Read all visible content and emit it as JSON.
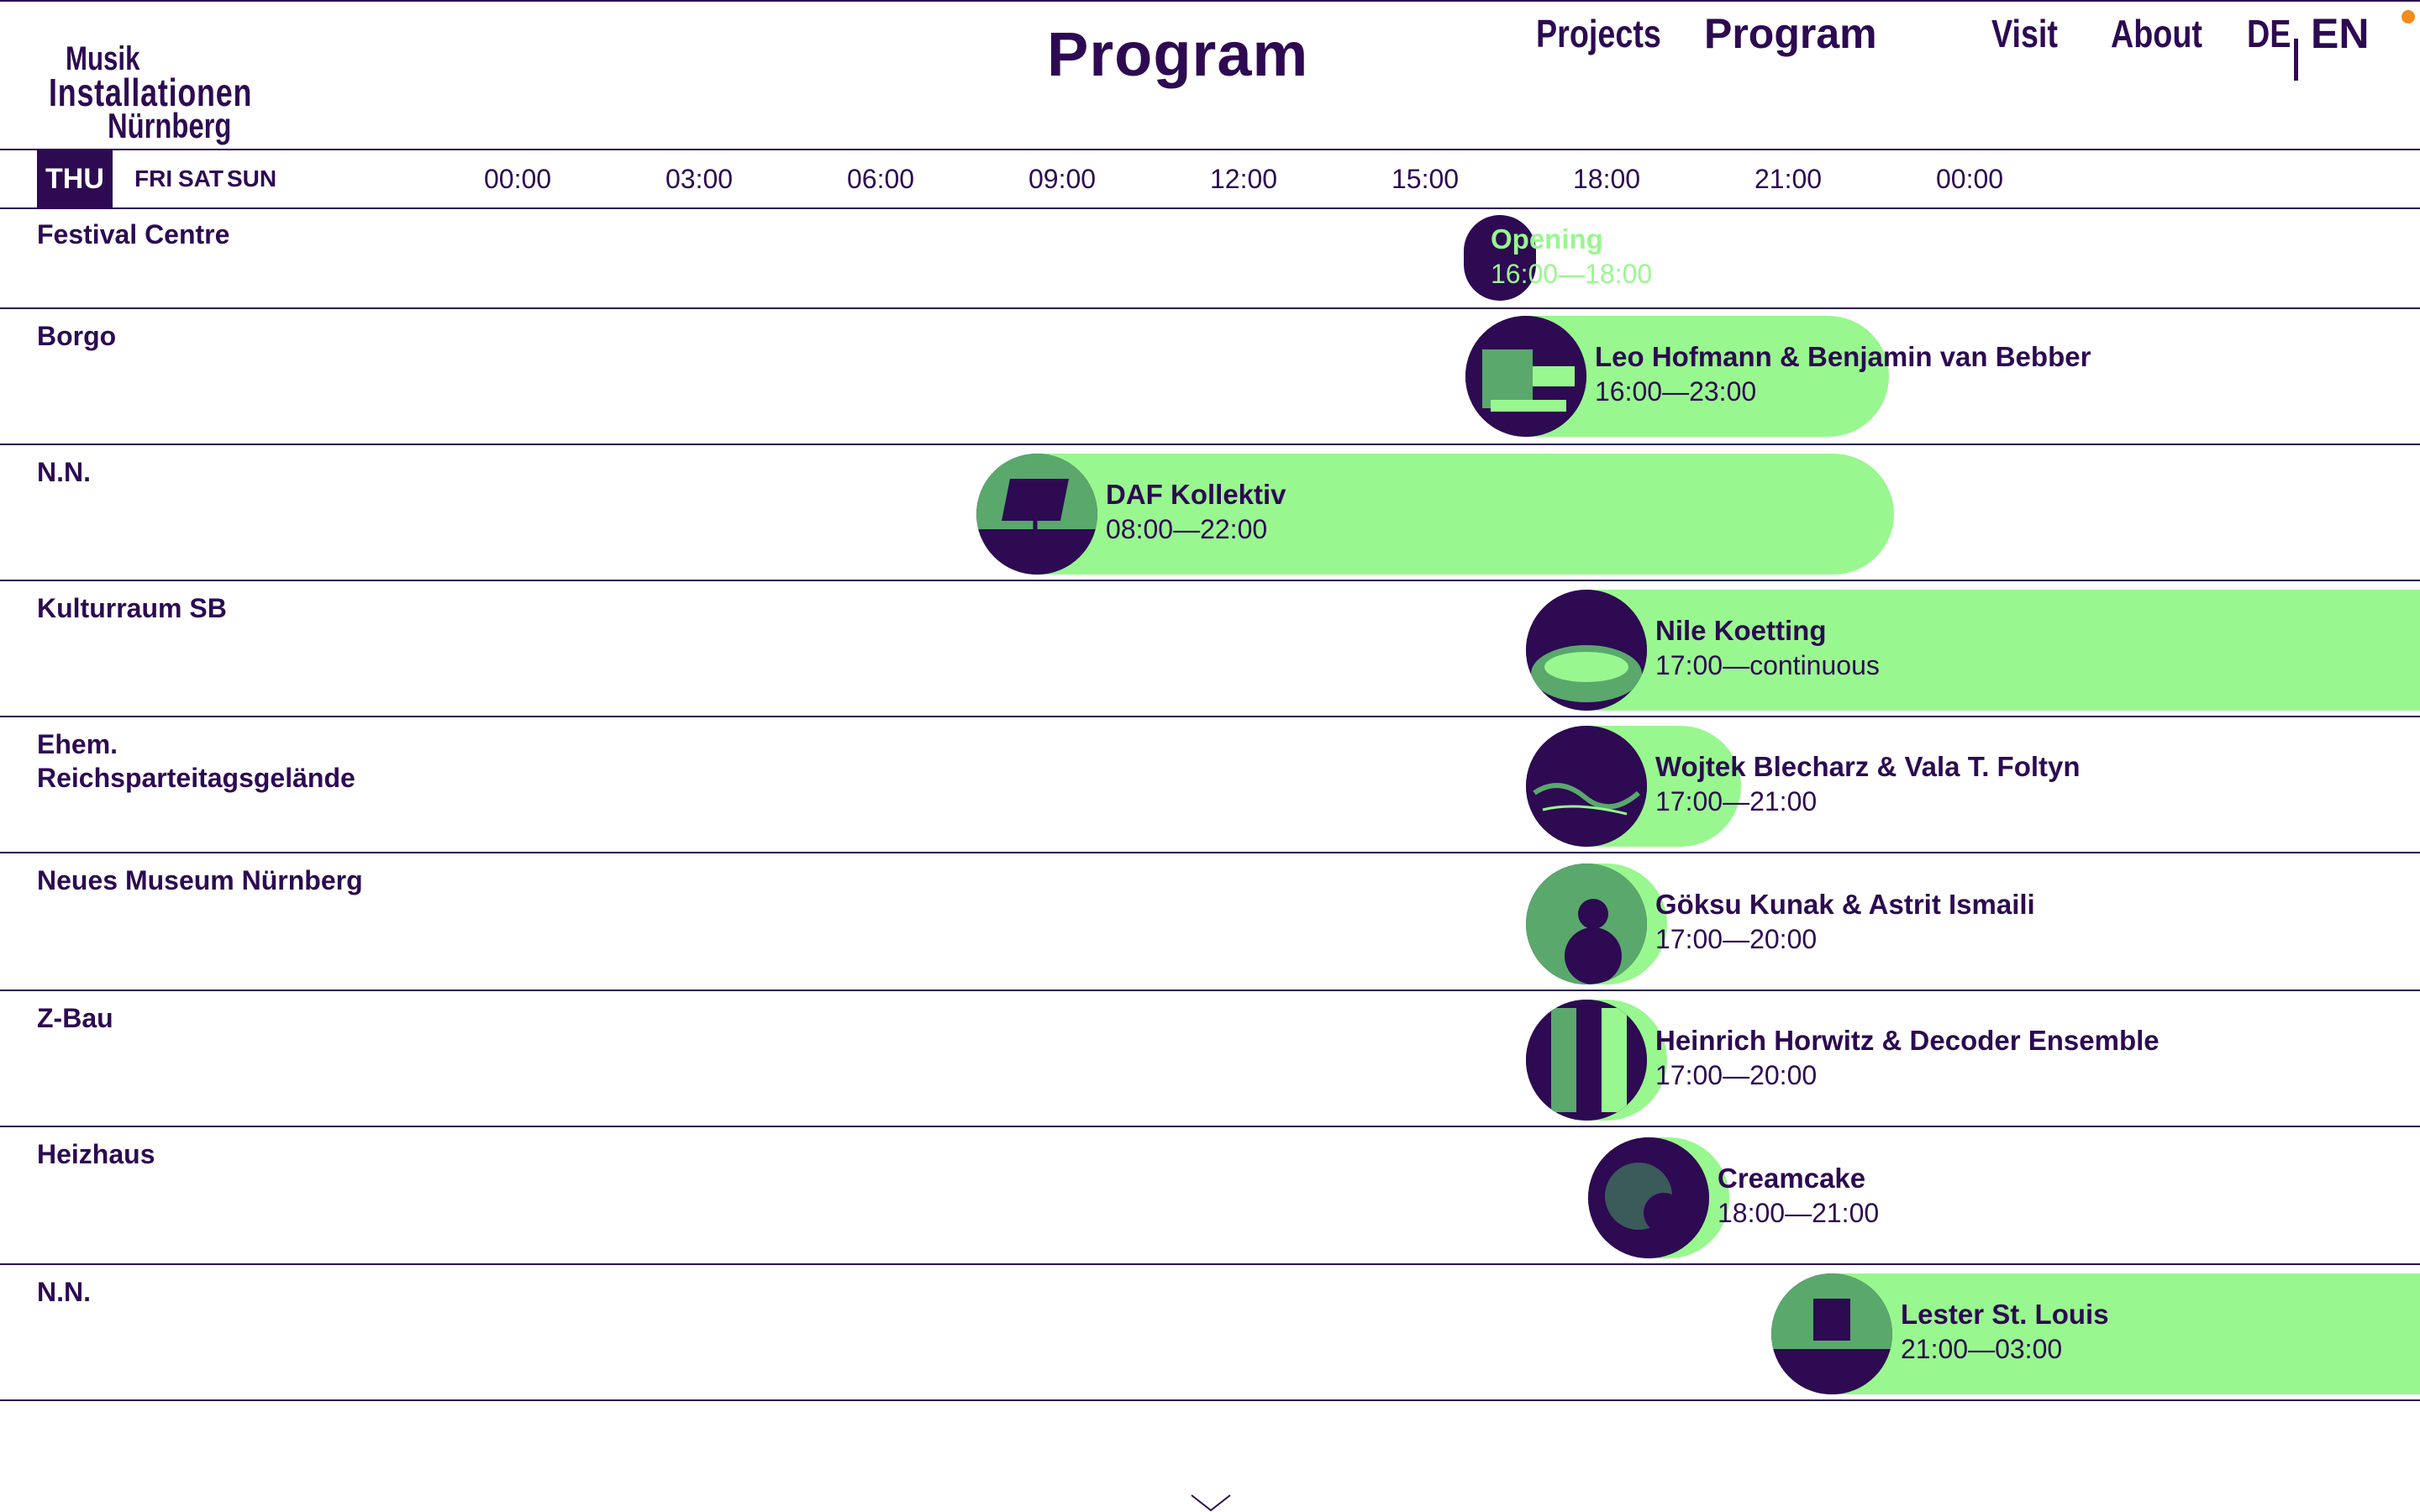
{
  "logo": {
    "line1": "Musik",
    "line2": "Installationen",
    "line3": "Nürnberg"
  },
  "page_title": "Program",
  "nav": {
    "projects": "Projects",
    "program": "Program",
    "visit": "Visit",
    "about": "About",
    "lang_de": "DE",
    "lang_en": "EN"
  },
  "days": {
    "thu": "THU",
    "fri": "FRI",
    "sat": "SAT",
    "sun": "SUN"
  },
  "hours": [
    "00:00",
    "03:00",
    "06:00",
    "09:00",
    "12:00",
    "15:00",
    "18:00",
    "21:00",
    "00:00"
  ],
  "rows": [
    {
      "venue": "Festival Centre",
      "title": "Opening",
      "time": "16:00—18:00"
    },
    {
      "venue": "Borgo",
      "title": "Leo Hofmann & Benjamin van Bebber",
      "time": "16:00—23:00"
    },
    {
      "venue": "N.N.",
      "title": "DAF Kollektiv",
      "time": "08:00—22:00"
    },
    {
      "venue": "Kulturraum SB",
      "title": "Nile Koetting",
      "time": "17:00—continuous"
    },
    {
      "venue": "Ehem. Reichsparteitagsgelände",
      "title": "Wojtek Blecharz & Vala T. Foltyn",
      "time": "17:00—21:00"
    },
    {
      "venue": "Neues Museum Nürnberg",
      "title": "Göksu Kunak & Astrit Ismaili",
      "time": "17:00—20:00"
    },
    {
      "venue": "Z-Bau",
      "title": "Heinrich Horwitz & Decoder Ensemble",
      "time": "17:00—20:00"
    },
    {
      "venue": "Heizhaus",
      "title": "Creamcake",
      "time": "18:00—21:00"
    },
    {
      "venue": "N.N.",
      "title": "Lester St. Louis",
      "time": "21:00—03:00"
    }
  ],
  "colors": {
    "primary": "#2d0a52",
    "accent": "#99f78f",
    "indicator": "#f28c1c"
  },
  "icons": {
    "scroll": "chevron-down-icon"
  }
}
